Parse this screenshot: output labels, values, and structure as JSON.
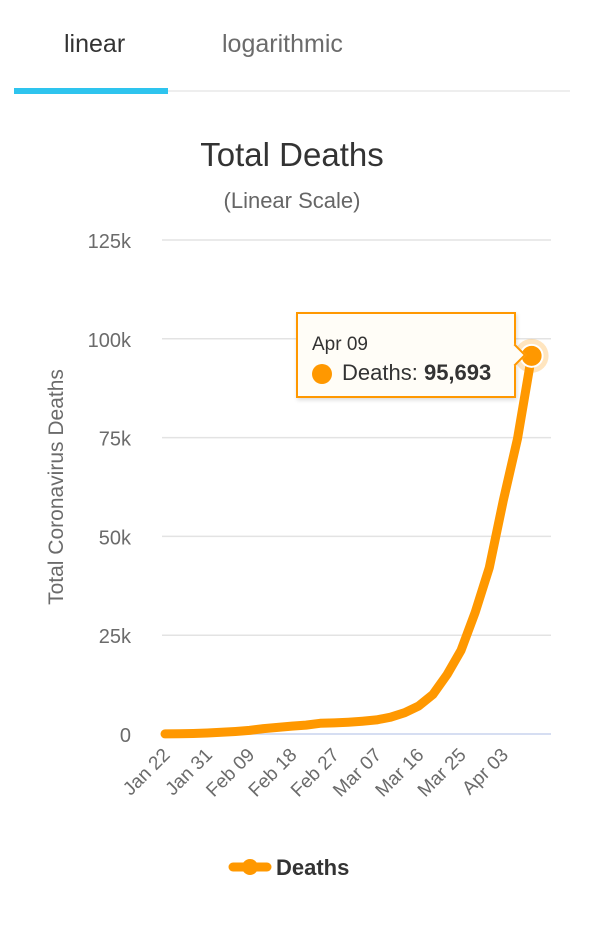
{
  "tabs": [
    {
      "label": "linear",
      "active": true
    },
    {
      "label": "logarithmic",
      "active": false
    }
  ],
  "colors": {
    "accent_tab": "#2ec4ee",
    "series": "#ff9800",
    "grid": "#e3e3e3",
    "baseline": "#c9d3ee",
    "text": "#333333",
    "axis_text": "#6b6b6b"
  },
  "tooltip": {
    "date": "Apr 09",
    "series_label": "Deaths:",
    "value": "95,693"
  },
  "chart_data": {
    "type": "line",
    "title": "Total Deaths",
    "subtitle": "(Linear Scale)",
    "xlabel": "",
    "ylabel": "Total Coronavirus Deaths",
    "ylim": [
      0,
      125000
    ],
    "yticks": [
      0,
      25000,
      50000,
      75000,
      100000,
      125000
    ],
    "ytick_labels": [
      "0",
      "25k",
      "50k",
      "75k",
      "100k",
      "125k"
    ],
    "xtick_labels": [
      "Jan 22",
      "Jan 31",
      "Feb 09",
      "Feb 18",
      "Feb 27",
      "Mar 07",
      "Mar 16",
      "Mar 25",
      "Apr 03"
    ],
    "grid": true,
    "legend_position": "bottom",
    "series": [
      {
        "name": "Deaths",
        "x": [
          "Jan 22",
          "Jan 25",
          "Jan 28",
          "Jan 31",
          "Feb 03",
          "Feb 06",
          "Feb 09",
          "Feb 12",
          "Feb 15",
          "Feb 18",
          "Feb 21",
          "Feb 24",
          "Feb 27",
          "Mar 01",
          "Mar 04",
          "Mar 07",
          "Mar 10",
          "Mar 13",
          "Mar 16",
          "Mar 19",
          "Mar 22",
          "Mar 25",
          "Mar 28",
          "Mar 31",
          "Apr 03",
          "Apr 06",
          "Apr 09"
        ],
        "values": [
          17,
          56,
          132,
          259,
          427,
          638,
          906,
          1369,
          1666,
          2004,
          2247,
          2700,
          2800,
          2995,
          3250,
          3558,
          4260,
          5400,
          7100,
          10000,
          15000,
          21200,
          30800,
          42100,
          59200,
          74700,
          95693
        ]
      }
    ]
  }
}
